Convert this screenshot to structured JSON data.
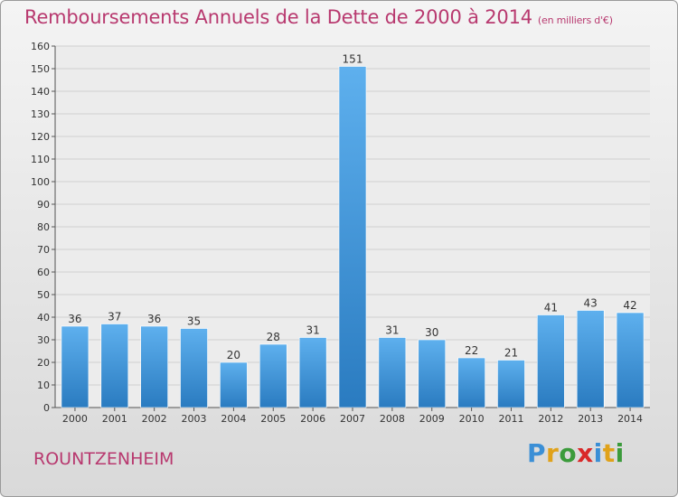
{
  "header": {
    "title": "Remboursements Annuels de la Dette de 2000 à 2014",
    "unit": "(en milliers d'€)"
  },
  "footer": {
    "city": "ROUNTZENHEIM",
    "logo": "Proxiti"
  },
  "colors": {
    "bar": "#4a9ee0",
    "bar_dark": "#2a7bc0",
    "accent": "#b8396f"
  },
  "chart_data": {
    "type": "bar",
    "categories": [
      "2000",
      "2001",
      "2002",
      "2003",
      "2004",
      "2005",
      "2006",
      "2007",
      "2008",
      "2009",
      "2010",
      "2011",
      "2012",
      "2013",
      "2014"
    ],
    "values": [
      36,
      37,
      36,
      35,
      20,
      28,
      31,
      151,
      31,
      30,
      22,
      21,
      41,
      43,
      42
    ],
    "title": "Remboursements Annuels de la Dette de 2000 à 2014",
    "xlabel": "",
    "ylabel": "",
    "ylim": [
      0,
      160
    ],
    "yticks": [
      0,
      10,
      20,
      30,
      40,
      50,
      60,
      70,
      80,
      90,
      100,
      110,
      120,
      130,
      140,
      150,
      160
    ],
    "grid": true,
    "legend": "none"
  }
}
